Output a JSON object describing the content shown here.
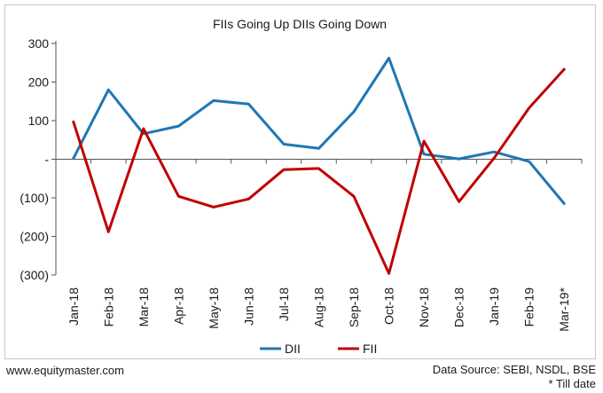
{
  "chart_data": {
    "type": "line",
    "title": "FIIs Going Up DIIs Going Down",
    "categories": [
      "Jan-18",
      "Feb-18",
      "Mar-18",
      "Apr-18",
      "May-18",
      "Jun-18",
      "Jul-18",
      "Aug-18",
      "Sep-18",
      "Oct-18",
      "Nov-18",
      "Dec-18",
      "Jan-19",
      "Feb-19",
      "Mar-19*"
    ],
    "series": [
      {
        "name": "DII",
        "color": "#1f77b4",
        "values": [
          2,
          180,
          66,
          86,
          152,
          143,
          39,
          28,
          123,
          262,
          13,
          1,
          19,
          -6,
          -115
        ]
      },
      {
        "name": "FII",
        "color": "#c00000",
        "values": [
          97,
          -188,
          79,
          -96,
          -124,
          -103,
          -27,
          -24,
          -96,
          -296,
          47,
          -110,
          3,
          133,
          233
        ]
      }
    ],
    "ylim": [
      -300,
      300
    ],
    "yticks": [
      300,
      200,
      100,
      0,
      -100,
      -200,
      -300
    ],
    "ytick_labels": [
      "300",
      "200",
      "100",
      "-",
      "(100)",
      "(200)",
      "(300)"
    ],
    "xlabel": "",
    "ylabel": "",
    "grid": false,
    "legend_position": "bottom"
  },
  "footer": {
    "website": "www.equitymaster.com",
    "source": "Data Source: SEBI, NSDL, BSE",
    "note": "* Till date"
  }
}
